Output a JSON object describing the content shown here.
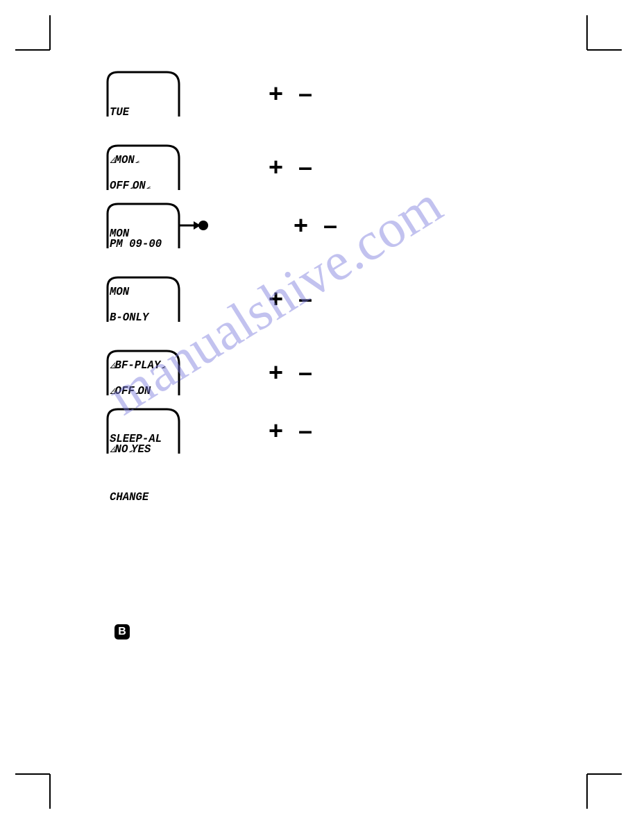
{
  "watermark": "manualshive.com",
  "b_icon_label": "B",
  "pm_plus": "+",
  "pm_minus": "–",
  "flash_left_glyph": "𑁋",
  "flash_right_glyph": "𑁋",
  "rows": [
    {
      "line1": {
        "text": "TUE",
        "flash_left": false,
        "flash_right": false
      },
      "line2": {
        "text": "MON",
        "flash_left": true,
        "flash_right": true
      },
      "has_arrow_dot": false
    },
    {
      "line1": {
        "text": "OFF ON",
        "flash_left": false,
        "flash_right": true,
        "flash_after_first_word": true
      },
      "line2": {
        "text": "MON",
        "flash_left": false,
        "flash_right": false
      },
      "has_arrow_dot": false
    },
    {
      "line1": {
        "text": "PM 09-00",
        "flash_left": false,
        "flash_right": false
      },
      "line2": {
        "text": "MON",
        "flash_left": false,
        "flash_right": false
      },
      "has_arrow_dot": true
    },
    {
      "line1": {
        "text": "B-ONLY",
        "flash_left": false,
        "flash_right": false
      },
      "line2": {
        "text": "BF-PLAY",
        "flash_left": true,
        "flash_right": true
      },
      "has_arrow_dot": false
    },
    {
      "line1": {
        "text": "OFF ON",
        "flash_left": true,
        "flash_right": false,
        "flash_after_first_word": true
      },
      "line2": {
        "text": "SLEEP-AL",
        "flash_left": false,
        "flash_right": false
      },
      "has_arrow_dot": false
    },
    {
      "line1": {
        "text": "NO YES",
        "flash_left": true,
        "flash_right": false,
        "flash_after_first_word": true
      },
      "line2": {
        "text": "CHANGE",
        "flash_left": false,
        "flash_right": false
      },
      "has_arrow_dot": false
    }
  ],
  "gaps_after": [
    0,
    2,
    3
  ],
  "colors": {
    "text": "#000000",
    "background": "#ffffff",
    "watermark": "rgba(120,120,220,0.45)"
  },
  "lcd_frame": {
    "stroke": "#000000",
    "stroke_width": 3
  },
  "arrow_dot": {
    "fill": "#000000"
  }
}
